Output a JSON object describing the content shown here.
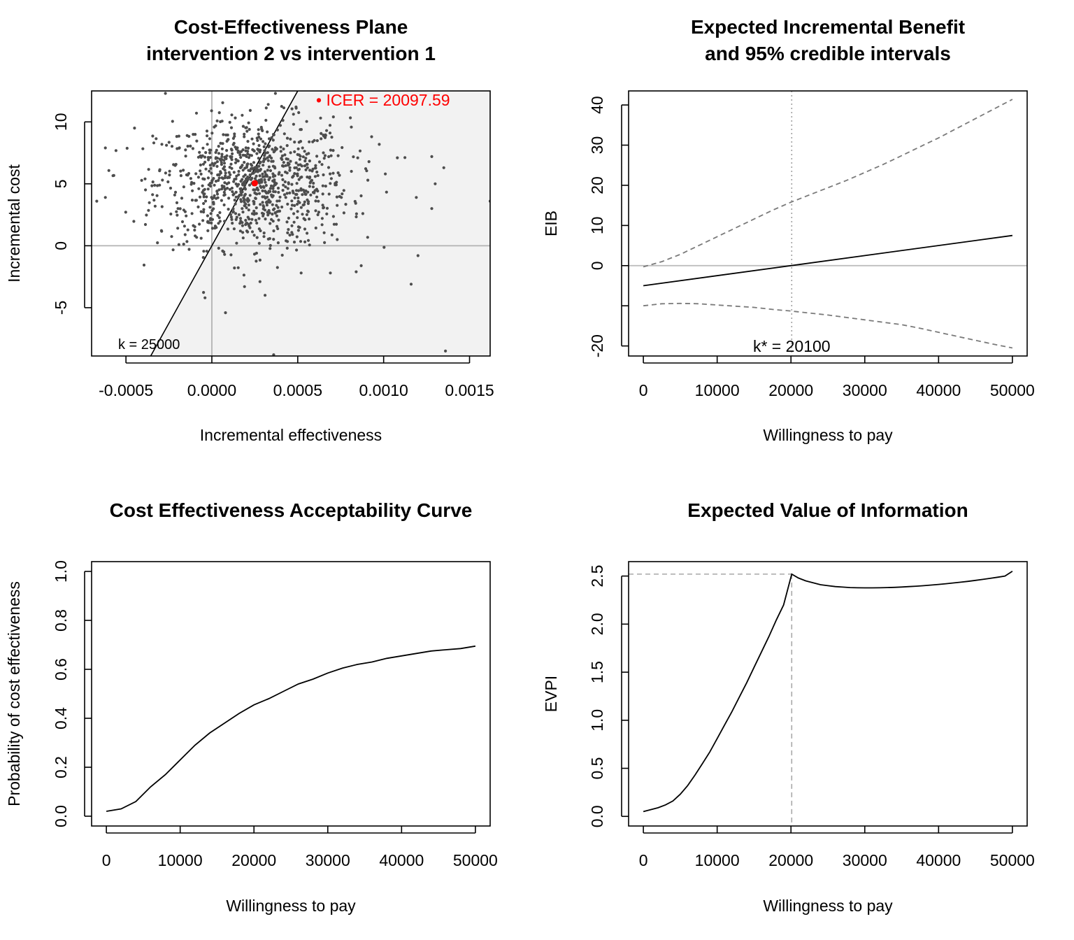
{
  "chart_data": [
    {
      "id": "ce-plane",
      "type": "scatter",
      "title_lines": [
        "Cost-Effectiveness Plane",
        "intervention 2 vs intervention 1"
      ],
      "xlabel": "Incremental effectiveness",
      "ylabel": "Incremental cost",
      "xlim": [
        -0.0007,
        0.00162
      ],
      "ylim": [
        -8.9,
        12.5
      ],
      "xticks": [
        -0.0005,
        0.0,
        0.0005,
        0.001,
        0.0015
      ],
      "xtick_labels": [
        "-0.0005",
        "0.0000",
        "0.0005",
        "0.0010",
        "0.0015"
      ],
      "yticks": [
        -5,
        0,
        5,
        10
      ],
      "ytick_labels": [
        "-5",
        "0",
        "5",
        "10"
      ],
      "wtp_line_k": 25000,
      "wtp_line_label": "k = 25000",
      "icer_value": 20097.59,
      "icer_label": "• ICER = 20097.59",
      "icer_point": {
        "x": 0.00025,
        "y": 5.05
      },
      "point_color": "#4d4d4d",
      "icer_color": "#ff0000",
      "region_color": "#f2f2f2",
      "sample_summary": {
        "n_points": 1000,
        "mean_x": 0.00024,
        "sd_x": 0.00028,
        "mean_y": 5.05,
        "sd_y": 2.6
      },
      "notable_points": [
        {
          "x": -0.00062,
          "y": 7.9
        },
        {
          "x": -0.00045,
          "y": 9.5
        },
        {
          "x": -0.00062,
          "y": 3.9
        },
        {
          "x": -0.00027,
          "y": 12.3
        },
        {
          "x": 0.00037,
          "y": 12.3
        },
        {
          "x": 0.00049,
          "y": 11.2
        },
        {
          "x": 0.00093,
          "y": 8.8
        },
        {
          "x": 0.00108,
          "y": 7.1
        },
        {
          "x": 0.00135,
          "y": 6.3
        },
        {
          "x": 0.00128,
          "y": 7.2
        },
        {
          "x": 0.0013,
          "y": 5.0
        },
        {
          "x": 0.00119,
          "y": 3.9
        },
        {
          "x": 0.00162,
          "y": 3.6
        },
        {
          "x": -0.00067,
          "y": 3.6
        },
        {
          "x": 0.00128,
          "y": 3.0
        },
        {
          "x": 0.00101,
          "y": 5.8
        },
        {
          "x": 0.00073,
          "y": 0.5
        },
        {
          "x": 0.0012,
          "y": -0.8
        },
        {
          "x": 0.00116,
          "y": -3.1
        },
        {
          "x": 0.00084,
          "y": -2.1
        },
        {
          "x": 0.00069,
          "y": -2.2
        },
        {
          "x": 0.00052,
          "y": -2.2
        },
        {
          "x": 0.00031,
          "y": -4.0
        },
        {
          "x": 0.00019,
          "y": -3.3
        },
        {
          "x": -4e-05,
          "y": -4.2
        },
        {
          "x": 0.00028,
          "y": -2.9
        },
        {
          "x": 0.00136,
          "y": -8.5
        },
        {
          "x": 0.00036,
          "y": -8.8
        },
        {
          "x": 0.00026,
          "y": -0.6
        },
        {
          "x": 4e-05,
          "y": -0.2
        }
      ]
    },
    {
      "id": "eib",
      "type": "line",
      "title_lines": [
        "Expected Incremental Benefit",
        "and 95% credible intervals"
      ],
      "xlabel": "Willingness to pay",
      "ylabel": "EIB",
      "xlim": [
        -2000,
        52000
      ],
      "ylim": [
        -22.5,
        43.5
      ],
      "xticks": [
        0,
        10000,
        20000,
        30000,
        40000,
        50000
      ],
      "xtick_labels": [
        "0",
        "10000",
        "20000",
        "30000",
        "40000",
        "50000"
      ],
      "yticks": [
        -20,
        -10,
        0,
        10,
        20,
        30,
        40
      ],
      "ytick_labels": [
        "-20",
        "",
        "0",
        "10",
        "20",
        "30",
        "40"
      ],
      "kstar": 20100,
      "kstar_label": "k* = 20100",
      "series": [
        {
          "name": "EIB",
          "style": "solid",
          "x": [
            0,
            50000
          ],
          "values": [
            -5.0,
            7.5
          ]
        },
        {
          "name": "upper 95%",
          "style": "dashed",
          "x": [
            0,
            2500,
            5000,
            7500,
            10000,
            12500,
            15000,
            17500,
            20000,
            22500,
            25000,
            27500,
            30000,
            32500,
            35000,
            37500,
            40000,
            42500,
            45000,
            47500,
            50000
          ],
          "values": [
            -0.3,
            1.0,
            2.8,
            5.0,
            7.2,
            9.4,
            11.6,
            13.8,
            15.8,
            17.6,
            19.4,
            21.2,
            23.2,
            25.2,
            27.4,
            29.6,
            31.8,
            34.2,
            36.6,
            39.0,
            41.4
          ]
        },
        {
          "name": "lower 95%",
          "style": "dashed",
          "x": [
            0,
            2500,
            5000,
            7500,
            10000,
            12500,
            15000,
            17500,
            20000,
            22500,
            25000,
            27500,
            30000,
            32500,
            35000,
            37500,
            40000,
            42500,
            45000,
            47500,
            50000
          ],
          "values": [
            -10.0,
            -9.5,
            -9.4,
            -9.5,
            -9.8,
            -10.1,
            -10.4,
            -10.9,
            -11.3,
            -11.8,
            -12.3,
            -12.9,
            -13.5,
            -14.1,
            -14.7,
            -15.6,
            -16.6,
            -17.6,
            -18.6,
            -19.6,
            -20.5
          ]
        }
      ]
    },
    {
      "id": "ceac",
      "type": "line",
      "title_lines": [
        "Cost Effectiveness Acceptability Curve"
      ],
      "xlabel": "Willingness to pay",
      "ylabel": "Probability of cost effectiveness",
      "xlim": [
        -2000,
        52000
      ],
      "ylim": [
        -0.04,
        1.04
      ],
      "xticks": [
        0,
        10000,
        20000,
        30000,
        40000,
        50000
      ],
      "xtick_labels": [
        "0",
        "10000",
        "20000",
        "30000",
        "40000",
        "50000"
      ],
      "yticks": [
        0.0,
        0.2,
        0.4,
        0.6,
        0.8,
        1.0
      ],
      "ytick_labels": [
        "0.0",
        "0.2",
        "0.4",
        "0.6",
        "0.8",
        "1.0"
      ],
      "series": [
        {
          "name": "CEAC",
          "x": [
            0,
            2000,
            4000,
            6000,
            8000,
            10000,
            12000,
            14000,
            16000,
            18000,
            20000,
            22000,
            24000,
            26000,
            28000,
            30000,
            32000,
            34000,
            36000,
            38000,
            40000,
            42000,
            44000,
            46000,
            48000,
            50000
          ],
          "values": [
            0.02,
            0.03,
            0.06,
            0.12,
            0.17,
            0.23,
            0.29,
            0.34,
            0.38,
            0.42,
            0.455,
            0.48,
            0.51,
            0.54,
            0.56,
            0.585,
            0.605,
            0.62,
            0.63,
            0.645,
            0.655,
            0.665,
            0.675,
            0.68,
            0.685,
            0.695
          ]
        }
      ]
    },
    {
      "id": "evpi",
      "type": "line",
      "title_lines": [
        "Expected Value of Information"
      ],
      "xlabel": "Willingness to pay",
      "ylabel": "EVPI",
      "xlim": [
        -2000,
        52000
      ],
      "ylim": [
        -0.1,
        2.65
      ],
      "xticks": [
        0,
        10000,
        20000,
        30000,
        40000,
        50000
      ],
      "xtick_labels": [
        "0",
        "10000",
        "20000",
        "30000",
        "40000",
        "50000"
      ],
      "yticks": [
        0.0,
        0.5,
        1.0,
        1.5,
        2.0,
        2.5
      ],
      "ytick_labels": [
        "0.0",
        "0.5",
        "1.0",
        "1.5",
        "2.0",
        "2.5"
      ],
      "kstar": 20100,
      "evpi_at_kstar": 2.52,
      "series": [
        {
          "name": "EVPI",
          "x": [
            0,
            1000,
            2000,
            3000,
            4000,
            5000,
            6000,
            7000,
            8000,
            9000,
            10000,
            11000,
            12000,
            13000,
            14000,
            15000,
            16000,
            17000,
            18000,
            19000,
            20100,
            21000,
            22000,
            23000,
            24000,
            25000,
            26000,
            27000,
            28000,
            29000,
            30000,
            31000,
            32000,
            33000,
            34000,
            35000,
            36000,
            37000,
            38000,
            39000,
            40000,
            41000,
            42000,
            43000,
            44000,
            45000,
            46000,
            47000,
            48000,
            49000,
            50000
          ],
          "values": [
            0.05,
            0.07,
            0.09,
            0.12,
            0.16,
            0.23,
            0.32,
            0.43,
            0.55,
            0.67,
            0.81,
            0.95,
            1.09,
            1.24,
            1.39,
            1.55,
            1.71,
            1.87,
            2.04,
            2.2,
            2.52,
            2.48,
            2.45,
            2.43,
            2.41,
            2.4,
            2.39,
            2.385,
            2.38,
            2.378,
            2.377,
            2.377,
            2.378,
            2.38,
            2.382,
            2.386,
            2.39,
            2.395,
            2.4,
            2.406,
            2.413,
            2.42,
            2.428,
            2.436,
            2.445,
            2.455,
            2.465,
            2.476,
            2.488,
            2.5,
            2.55
          ]
        }
      ]
    }
  ]
}
